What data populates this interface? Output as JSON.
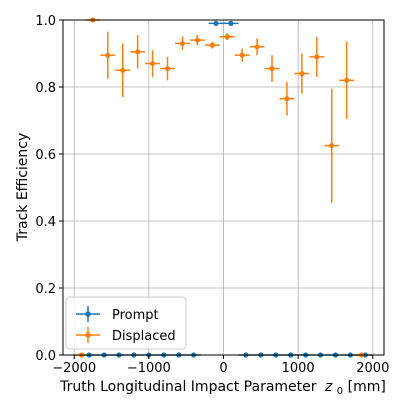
{
  "chart_data": {
    "type": "scatter",
    "xlabel": "Truth Longitudinal Impact Parameter",
    "xlabel_symbol": "z",
    "xlabel_subscript": "0",
    "xlabel_unit": "[mm]",
    "ylabel": "Track Efficiency",
    "xlim": [
      -2150,
      2150
    ],
    "ylim": [
      0,
      1.0
    ],
    "x_ticks": [
      -2000,
      -1000,
      0,
      1000,
      2000
    ],
    "x_tick_labels": [
      "−2000",
      "−1000",
      "0",
      "1000",
      "2000"
    ],
    "y_ticks": [
      0.0,
      0.2,
      0.4,
      0.6,
      0.8,
      1.0
    ],
    "y_tick_labels": [
      "0.0",
      "0.2",
      "0.4",
      "0.6",
      "0.8",
      "1.0"
    ],
    "grid": true,
    "legend_position": "lower-left",
    "series": [
      {
        "name": "Prompt",
        "color": "#1f77b4",
        "x": [
          -1800,
          -1600,
          -1400,
          -1200,
          -1000,
          -800,
          -600,
          -400,
          -100,
          100,
          300,
          500,
          700,
          900,
          1100,
          1300,
          1500,
          1700,
          1900
        ],
        "xerr": [
          100,
          100,
          100,
          100,
          100,
          100,
          100,
          100,
          100,
          100,
          100,
          100,
          100,
          100,
          100,
          100,
          100,
          100,
          100
        ],
        "y": [
          0,
          0,
          0,
          0,
          0,
          0,
          0,
          0,
          0.99,
          0.99,
          0,
          0,
          0,
          0,
          0,
          0,
          0,
          0,
          0
        ],
        "yerr": [
          0,
          0,
          0,
          0,
          0,
          0,
          0,
          0,
          0.005,
          0.005,
          0,
          0,
          0,
          0,
          0,
          0,
          0,
          0,
          0
        ]
      },
      {
        "name": "Displaced",
        "color": "#ff7f0e",
        "x": [
          -1900,
          -1750,
          -1550,
          -1350,
          -1150,
          -950,
          -750,
          -550,
          -350,
          -150,
          50,
          250,
          450,
          650,
          850,
          1050,
          1250,
          1450,
          1650,
          1850
        ],
        "xerr": [
          100,
          100,
          100,
          100,
          100,
          100,
          100,
          100,
          100,
          100,
          100,
          100,
          100,
          100,
          100,
          100,
          100,
          100,
          100,
          100
        ],
        "y": [
          0,
          1.0,
          0.895,
          0.85,
          0.905,
          0.87,
          0.855,
          0.93,
          0.94,
          0.925,
          0.95,
          0.895,
          0.92,
          0.855,
          0.765,
          0.84,
          0.89,
          0.625,
          0.82,
          0
        ],
        "yerr": [
          0,
          0,
          0.07,
          0.08,
          0.05,
          0.04,
          0.035,
          0.02,
          0.015,
          0.01,
          0.01,
          0.02,
          0.025,
          0.04,
          0.05,
          0.06,
          0.06,
          0.17,
          0.115,
          0
        ]
      }
    ]
  }
}
